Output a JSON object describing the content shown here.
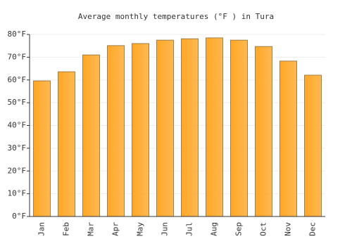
{
  "chart_data": {
    "type": "bar",
    "title": "Average monthly temperatures (°F ) in Tura",
    "categories": [
      "Jan",
      "Feb",
      "Mar",
      "Apr",
      "May",
      "Jun",
      "Jul",
      "Aug",
      "Sep",
      "Oct",
      "Nov",
      "Dec"
    ],
    "values": [
      59.6,
      63.6,
      71.0,
      75.1,
      76.0,
      77.5,
      78.1,
      78.5,
      77.5,
      74.7,
      68.3,
      62.1
    ],
    "color": "#ffa726",
    "ylim": [
      0,
      80
    ],
    "yticks": [
      {
        "value": 0,
        "label": "0°F"
      },
      {
        "value": 10,
        "label": "10°F"
      },
      {
        "value": 20,
        "label": "20°F"
      },
      {
        "value": 30,
        "label": "30°F"
      },
      {
        "value": 40,
        "label": "40°F"
      },
      {
        "value": 50,
        "label": "50°F"
      },
      {
        "value": 60,
        "label": "60°F"
      },
      {
        "value": 70,
        "label": "70°F"
      },
      {
        "value": 80,
        "label": "80°F"
      }
    ],
    "grid": true
  }
}
